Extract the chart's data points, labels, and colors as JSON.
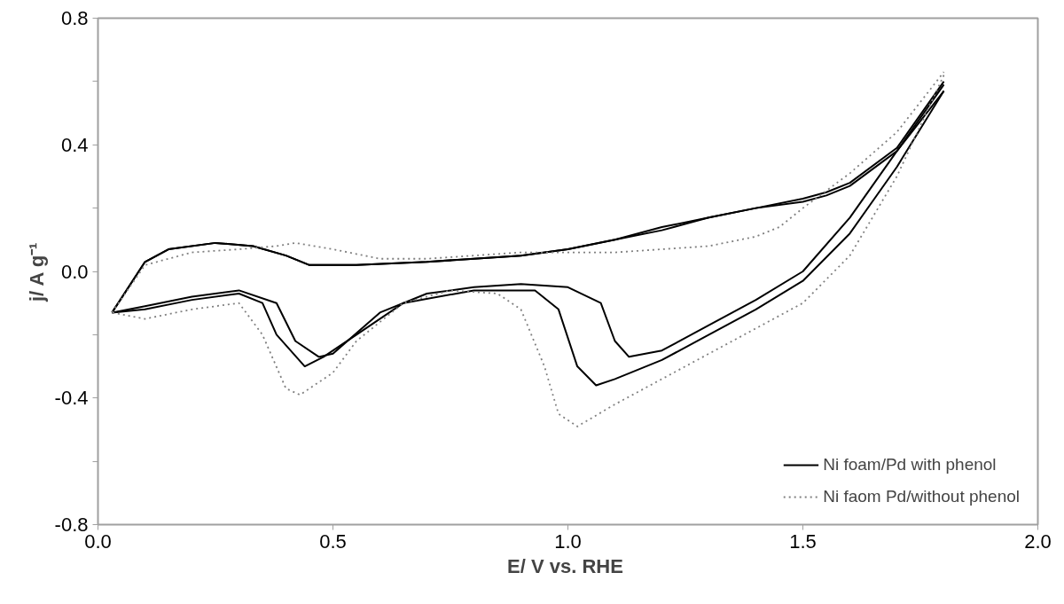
{
  "chart_data": {
    "type": "line",
    "xlabel": "E/ V  vs. RHE",
    "ylabel": "j/ A g⁻¹",
    "xlim": [
      0,
      2
    ],
    "xticks": [
      {
        "value": 0,
        "label": "0.0"
      },
      {
        "value": 0.5,
        "label": "0.5"
      },
      {
        "value": 1,
        "label": "1.0"
      },
      {
        "value": 1.5,
        "label": "1.5"
      },
      {
        "value": 2,
        "label": "2.0"
      }
    ],
    "ylim": [
      -0.8,
      0.8
    ],
    "yticks": [
      {
        "value": -0.8,
        "label": "-0.8"
      },
      {
        "value": -0.6,
        "label": null
      },
      {
        "value": -0.4,
        "label": "-0.4"
      },
      {
        "value": -0.2,
        "label": null
      },
      {
        "value": 0,
        "label": "0.0"
      },
      {
        "value": 0.2,
        "label": null
      },
      {
        "value": 0.4,
        "label": "0.4"
      },
      {
        "value": 0.6,
        "label": null
      },
      {
        "value": 0.8,
        "label": "0.8"
      }
    ],
    "grid": false,
    "legend": "bottom right",
    "marker": "none",
    "series": [
      {
        "name": "Ni foam/Pd with phenol",
        "color": "#000000",
        "line_style": "solid",
        "x": [
          0.03,
          0.1,
          0.15,
          0.25,
          0.33,
          0.4,
          0.45,
          0.55,
          0.7,
          0.8,
          0.9,
          1.0,
          1.1,
          1.2,
          1.3,
          1.4,
          1.5,
          1.55,
          1.6,
          1.7,
          1.8
        ],
        "values": [
          -0.13,
          0.03,
          0.07,
          0.09,
          0.08,
          0.05,
          0.02,
          0.02,
          0.03,
          0.04,
          0.05,
          0.07,
          0.1,
          0.14,
          0.17,
          0.2,
          0.23,
          0.25,
          0.28,
          0.39,
          0.6
        ]
      },
      {
        "color": "#000000",
        "line_style": "solid",
        "x": [
          1.8,
          1.7,
          1.6,
          1.5,
          1.4,
          1.3,
          1.2,
          1.13,
          1.1,
          1.07,
          1.0,
          0.9,
          0.8,
          0.7,
          0.6,
          0.5,
          0.47,
          0.42,
          0.38,
          0.3,
          0.2,
          0.1,
          0.03
        ],
        "values": [
          0.57,
          0.38,
          0.17,
          0.0,
          -0.09,
          -0.17,
          -0.25,
          -0.27,
          -0.22,
          -0.1,
          -0.05,
          -0.04,
          -0.05,
          -0.07,
          -0.13,
          -0.26,
          -0.27,
          -0.22,
          -0.1,
          -0.06,
          -0.08,
          -0.11,
          -0.13
        ]
      },
      {
        "color": "#000000",
        "line_style": "solid",
        "x": [
          1.8,
          1.7,
          1.6,
          1.5,
          1.4,
          1.3,
          1.2,
          1.1,
          1.06,
          1.02,
          0.98,
          0.93,
          0.8,
          0.65,
          0.55,
          0.48,
          0.44,
          0.38,
          0.35,
          0.3,
          0.2,
          0.1,
          0.03
        ],
        "values": [
          0.57,
          0.33,
          0.12,
          -0.03,
          -0.12,
          -0.2,
          -0.28,
          -0.34,
          -0.36,
          -0.3,
          -0.12,
          -0.06,
          -0.06,
          -0.1,
          -0.2,
          -0.27,
          -0.3,
          -0.2,
          -0.1,
          -0.07,
          -0.09,
          -0.12,
          -0.13
        ]
      },
      {
        "color": "#000000",
        "line_style": "solid",
        "x": [
          0.03,
          0.1,
          0.15,
          0.25,
          0.33,
          0.4,
          0.45,
          0.55,
          0.7,
          0.8,
          0.9,
          1.0,
          1.1,
          1.2,
          1.3,
          1.4,
          1.5,
          1.55,
          1.6,
          1.7,
          1.8
        ],
        "values": [
          -0.13,
          0.03,
          0.07,
          0.09,
          0.08,
          0.05,
          0.02,
          0.02,
          0.03,
          0.04,
          0.05,
          0.07,
          0.1,
          0.13,
          0.17,
          0.2,
          0.22,
          0.24,
          0.27,
          0.38,
          0.59
        ]
      },
      {
        "name": "Ni faom Pd/without phenol",
        "color": "#808080",
        "line_style": "dotted",
        "x": [
          0.03,
          0.1,
          0.2,
          0.3,
          0.38,
          0.42,
          0.5,
          0.6,
          0.7,
          0.8,
          0.9,
          1.0,
          1.1,
          1.2,
          1.3,
          1.4,
          1.45,
          1.5,
          1.6,
          1.7,
          1.8
        ],
        "values": [
          -0.13,
          0.02,
          0.06,
          0.07,
          0.08,
          0.09,
          0.07,
          0.04,
          0.04,
          0.05,
          0.06,
          0.06,
          0.06,
          0.07,
          0.08,
          0.11,
          0.14,
          0.2,
          0.31,
          0.44,
          0.63
        ]
      },
      {
        "color": "#808080",
        "line_style": "dotted",
        "x": [
          1.8,
          1.7,
          1.6,
          1.5,
          1.4,
          1.3,
          1.2,
          1.1,
          1.02,
          0.98,
          0.95,
          0.9,
          0.85,
          0.75,
          0.65,
          0.55,
          0.5,
          0.43,
          0.4,
          0.35,
          0.3,
          0.2,
          0.1,
          0.03
        ],
        "values": [
          0.62,
          0.3,
          0.05,
          -0.1,
          -0.18,
          -0.26,
          -0.34,
          -0.42,
          -0.49,
          -0.45,
          -0.3,
          -0.12,
          -0.07,
          -0.06,
          -0.1,
          -0.22,
          -0.32,
          -0.39,
          -0.37,
          -0.2,
          -0.1,
          -0.12,
          -0.15,
          -0.13
        ]
      }
    ]
  }
}
